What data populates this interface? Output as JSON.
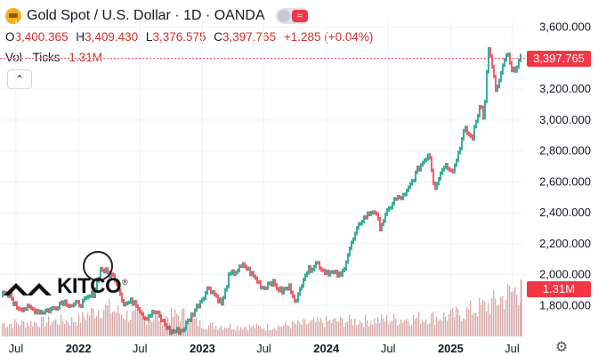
{
  "header": {
    "title": "Gold Spot / U.S. Dollar · 1D · OANDA",
    "ohlc": [
      {
        "label": "O",
        "value": "3,400.365"
      },
      {
        "label": "H",
        "value": "3,409.430"
      },
      {
        "label": "L",
        "value": "3,376.575"
      },
      {
        "label": "C",
        "value": "3,397.765"
      }
    ],
    "change": "+1.285 (+0.04%)",
    "vol_label": "Vol · Ticks",
    "vol_value": "1.31M",
    "collapse_icon": "chevron-up-icon"
  },
  "price_tag": "3,397.765",
  "volume_tag": "1.31M",
  "logo_text": "KITCO",
  "colors": {
    "up": "#089981",
    "down": "#f23645",
    "volume": "#d7a9a9",
    "text_red": "#d32f2f",
    "grid": "#f0f3fa"
  },
  "chart_data": {
    "type": "line",
    "title": "Gold Spot / U.S. Dollar · 1D · OANDA",
    "x_ticks": [
      "Jul",
      "2022",
      "Jul",
      "2023",
      "Jul",
      "2024",
      "Jul",
      "2025",
      "Jul"
    ],
    "x_tick_dates": [
      "2021-07-01",
      "2022-01-01",
      "2022-07-01",
      "2023-01-01",
      "2023-07-01",
      "2024-01-01",
      "2024-07-01",
      "2025-01-01",
      "2025-07-01"
    ],
    "y_ticks": [
      "3,600.000",
      "3,400.000",
      "3,200.000",
      "3,000.000",
      "2,800.000",
      "2,600.000",
      "2,400.000",
      "2,200.000",
      "2,000.000",
      "1,800.000"
    ],
    "ylim": [
      1600,
      3650
    ],
    "last_value": 3397.765,
    "series": [
      {
        "dates": [
          "2021-05-20",
          "2021-06-15",
          "2021-07-01",
          "2021-08-10",
          "2021-09-15",
          "2021-10-20",
          "2021-11-15",
          "2021-12-15",
          "2022-01-15",
          "2022-02-15",
          "2022-03-08",
          "2022-04-18",
          "2022-05-15",
          "2022-06-15",
          "2022-07-15",
          "2022-08-15",
          "2022-09-28",
          "2022-11-03",
          "2022-12-15",
          "2023-01-20",
          "2023-02-28",
          "2023-03-20",
          "2023-05-04",
          "2023-06-30",
          "2023-07-20",
          "2023-08-21",
          "2023-09-15",
          "2023-10-05",
          "2023-10-27",
          "2023-12-04",
          "2023-12-20",
          "2024-02-14",
          "2024-03-08",
          "2024-04-12",
          "2024-05-20",
          "2024-06-07",
          "2024-07-17",
          "2024-08-20",
          "2024-09-26",
          "2024-10-30",
          "2024-11-14",
          "2024-12-12",
          "2025-01-10",
          "2025-02-11",
          "2025-03-05",
          "2025-03-31",
          "2025-04-09",
          "2025-04-22",
          "2025-05-15",
          "2025-06-16",
          "2025-07-01",
          "2025-07-25"
        ],
        "values": [
          1870,
          1860,
          1790,
          1780,
          1760,
          1780,
          1830,
          1800,
          1820,
          1880,
          2040,
          1980,
          1810,
          1830,
          1720,
          1760,
          1630,
          1640,
          1790,
          1920,
          1810,
          1990,
          2060,
          1910,
          1960,
          1890,
          1920,
          1820,
          2000,
          2080,
          2030,
          1990,
          2160,
          2350,
          2420,
          2310,
          2480,
          2510,
          2680,
          2790,
          2560,
          2710,
          2680,
          2940,
          2880,
          3120,
          3000,
          3480,
          3180,
          3440,
          3300,
          3397.765
        ]
      }
    ],
    "volume": {
      "dates": [
        "2021-07-01",
        "2021-10-01",
        "2022-01-01",
        "2022-03-08",
        "2022-06-01",
        "2022-09-01",
        "2022-11-03",
        "2023-01-01",
        "2023-07-01",
        "2024-01-01",
        "2024-07-01",
        "2025-01-01",
        "2025-04-22",
        "2025-07-25"
      ],
      "values": [
        0.35,
        0.4,
        0.45,
        0.8,
        0.55,
        0.5,
        0.6,
        0.3,
        0.25,
        0.4,
        0.45,
        0.55,
        0.85,
        1.31
      ]
    }
  }
}
